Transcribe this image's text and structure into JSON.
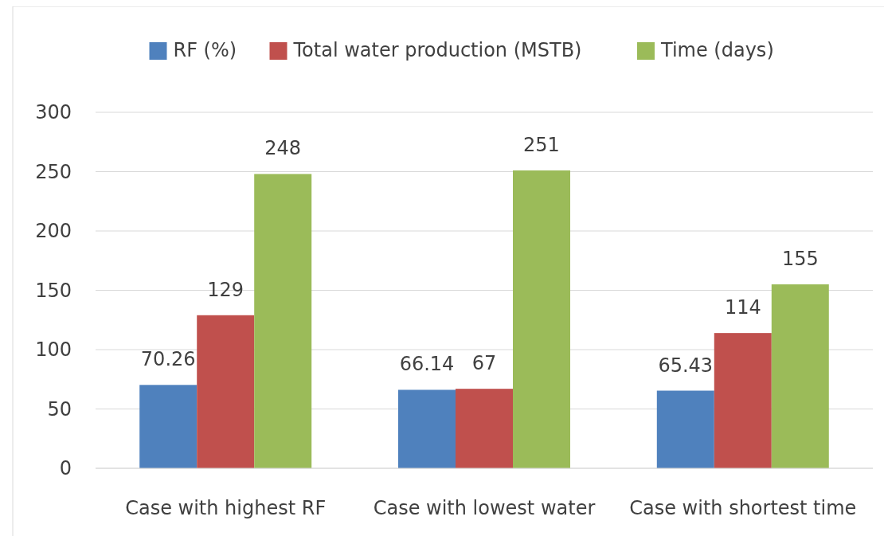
{
  "chart_data": {
    "type": "bar",
    "categories": [
      "Case with highest RF",
      "Case with lowest water",
      "Case with shortest time"
    ],
    "series": [
      {
        "name": "RF (%)",
        "color": "#4f81bd",
        "values": [
          70.26,
          66.14,
          65.43
        ]
      },
      {
        "name": "Total water production (MSTB)",
        "color": "#c0504d",
        "values": [
          129,
          67,
          114
        ]
      },
      {
        "name": "Time (days)",
        "color": "#9bbb59",
        "values": [
          248,
          251,
          155
        ]
      }
    ],
    "ylim": [
      0,
      300
    ],
    "yticks": [
      0,
      50,
      100,
      150,
      200,
      250,
      300
    ],
    "grid": "y",
    "legend": "top",
    "data_labels": true
  }
}
